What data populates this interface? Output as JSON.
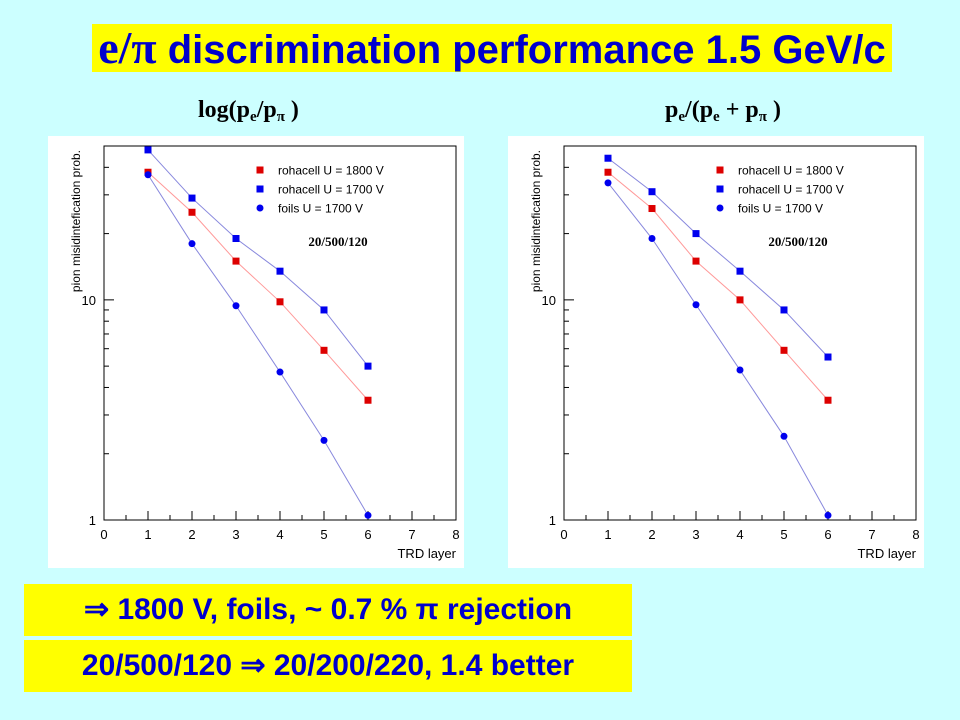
{
  "header": {
    "title_particles": "e/π",
    "title_rest": "discrimination performance 1.5 GeV/c"
  },
  "subtitles": {
    "left": {
      "pre": "log(p",
      "s1": "e",
      "mid": "/p",
      "s2": "π",
      "post": " )"
    },
    "right": {
      "pre": "p",
      "s1": "e",
      "mid1": "/(p",
      "s2": "e",
      "mid2": " + p",
      "s3": "π",
      "post": " )"
    }
  },
  "notes": [
    "⇒ 1800 V, foils,  ~ 0.7 % π rejection",
    "20/500/120 ⇒ 20/200/220, 1.4 better"
  ],
  "colors": {
    "background": "#ccffff",
    "highlight": "#ffff00",
    "text_blue": "#0000cc",
    "rohacell_1800": "#dd0000",
    "rohacell_1700": "#0000ee",
    "foils_1700": "#0000ee",
    "line_red": "#ff9999",
    "line_blue": "#8888dd"
  },
  "chart_data": [
    {
      "type": "line",
      "xlabel": "TRD layer",
      "ylabel": "pion misidintefication prob.",
      "xlim": [
        0,
        8
      ],
      "ylim": [
        1,
        50
      ],
      "log_y": true,
      "xticks": [
        0,
        1,
        2,
        3,
        4,
        5,
        6,
        7,
        8
      ],
      "yticks": [
        {
          "v": 1,
          "label": "1"
        },
        {
          "v": 10,
          "label": "10"
        }
      ],
      "legend_position": "top-right",
      "annotation": "20/500/120",
      "x": [
        1,
        2,
        3,
        4,
        5,
        6
      ],
      "series": [
        {
          "name": "rohacell U = 1800 V",
          "marker": "square",
          "color": "#dd0000",
          "line": "#ff9999",
          "values": [
            38,
            25,
            15,
            9.8,
            5.9,
            3.5
          ]
        },
        {
          "name": "rohacell U = 1700 V",
          "marker": "square",
          "color": "#0000ee",
          "line": "#8888dd",
          "values": [
            48,
            29,
            19,
            13.5,
            9,
            5
          ]
        },
        {
          "name": "foils U = 1700 V",
          "marker": "circle",
          "color": "#0000ee",
          "line": "#8888dd",
          "values": [
            37,
            18,
            9.4,
            4.7,
            2.3,
            1.05
          ]
        }
      ]
    },
    {
      "type": "line",
      "xlabel": "TRD layer",
      "ylabel": "pion misidintefication prob.",
      "xlim": [
        0,
        8
      ],
      "ylim": [
        1,
        50
      ],
      "log_y": true,
      "xticks": [
        0,
        1,
        2,
        3,
        4,
        5,
        6,
        7,
        8
      ],
      "yticks": [
        {
          "v": 1,
          "label": "1"
        },
        {
          "v": 10,
          "label": "10"
        }
      ],
      "legend_position": "top-right",
      "annotation": "20/500/120",
      "x": [
        1,
        2,
        3,
        4,
        5,
        6
      ],
      "series": [
        {
          "name": "rohacell U = 1800 V",
          "marker": "square",
          "color": "#dd0000",
          "line": "#ff9999",
          "values": [
            38,
            26,
            15,
            10,
            5.9,
            3.5
          ]
        },
        {
          "name": "rohacell U = 1700 V",
          "marker": "square",
          "color": "#0000ee",
          "line": "#8888dd",
          "values": [
            44,
            31,
            20,
            13.5,
            9,
            5.5
          ]
        },
        {
          "name": "foils U = 1700 V",
          "marker": "circle",
          "color": "#0000ee",
          "line": "#8888dd",
          "values": [
            34,
            19,
            9.5,
            4.8,
            2.4,
            1.05
          ]
        }
      ]
    }
  ]
}
